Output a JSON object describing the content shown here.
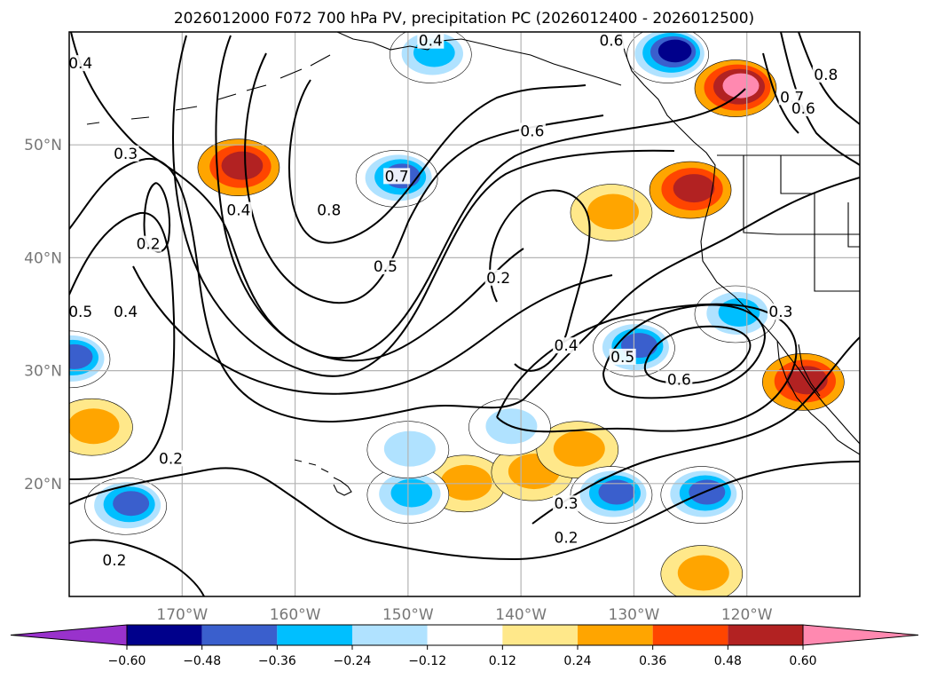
{
  "chart_data": {
    "type": "heatmap",
    "title": "2026012000 F072 700 hPa PV, precipitation PC (2026012400 - 2026012500)",
    "projection": "lat-lon",
    "xlim": [
      -180,
      -110
    ],
    "ylim": [
      10,
      60
    ],
    "x_ticks": [
      {
        "value": -170,
        "label": "170°W"
      },
      {
        "value": -160,
        "label": "160°W"
      },
      {
        "value": -150,
        "label": "150°W"
      },
      {
        "value": -140,
        "label": "140°W"
      },
      {
        "value": -130,
        "label": "130°W"
      },
      {
        "value": -120,
        "label": "120°W"
      }
    ],
    "y_ticks": [
      {
        "value": 20,
        "label": "20°N"
      },
      {
        "value": 30,
        "label": "30°N"
      },
      {
        "value": 40,
        "label": "40°N"
      },
      {
        "value": 50,
        "label": "50°N"
      }
    ],
    "grid": true,
    "colorbar": {
      "orientation": "horizontal",
      "extend": "both",
      "boundaries": [
        -0.6,
        -0.48,
        -0.36,
        -0.24,
        -0.12,
        0.12,
        0.24,
        0.36,
        0.48,
        0.6
      ],
      "tick_labels": [
        "−0.60",
        "−0.48",
        "−0.36",
        "−0.24",
        "−0.12",
        "0.12",
        "0.24",
        "0.36",
        "0.48",
        "0.60"
      ],
      "colors": [
        "#9932cc",
        "#00008b",
        "#3a5fcd",
        "#00bfff",
        "#b0e2ff",
        "#ffffff",
        "#ffe88a",
        "#ffa500",
        "#ff4500",
        "#b22222",
        "#ff89b0"
      ]
    },
    "pv_contour_labels": [
      {
        "lon": -179,
        "lat": 57,
        "text": "0.4"
      },
      {
        "lon": -175,
        "lat": 49,
        "text": "0.3"
      },
      {
        "lon": -173,
        "lat": 41,
        "text": "0.2"
      },
      {
        "lon": -165,
        "lat": 44,
        "text": "0.4"
      },
      {
        "lon": -179,
        "lat": 35,
        "text": "0.5"
      },
      {
        "lon": -175,
        "lat": 35,
        "text": "0.4"
      },
      {
        "lon": -171,
        "lat": 22,
        "text": "0.2"
      },
      {
        "lon": -176,
        "lat": 13,
        "text": "0.2"
      },
      {
        "lon": -148,
        "lat": 59,
        "text": "0.4"
      },
      {
        "lon": -157,
        "lat": 44,
        "text": "0.8"
      },
      {
        "lon": -151,
        "lat": 47,
        "text": "0.7"
      },
      {
        "lon": -139,
        "lat": 51,
        "text": "0.6"
      },
      {
        "lon": -152,
        "lat": 39,
        "text": "0.5"
      },
      {
        "lon": -142,
        "lat": 38,
        "text": "0.2"
      },
      {
        "lon": -136,
        "lat": 32,
        "text": "0.4"
      },
      {
        "lon": -131,
        "lat": 31,
        "text": "0.5"
      },
      {
        "lon": -126,
        "lat": 29,
        "text": "0.6"
      },
      {
        "lon": -136,
        "lat": 18,
        "text": "0.3"
      },
      {
        "lon": -136,
        "lat": 15,
        "text": "0.2"
      },
      {
        "lon": -117,
        "lat": 35,
        "text": "0.3"
      },
      {
        "lon": -132,
        "lat": 59,
        "text": "0.6"
      },
      {
        "lon": -116,
        "lat": 54,
        "text": "0.7"
      },
      {
        "lon": -115,
        "lat": 53,
        "text": "0.6"
      },
      {
        "lon": -113,
        "lat": 56,
        "text": "0.8"
      }
    ],
    "precip_pc_regions": [
      {
        "lon": -165,
        "lat": 48,
        "layers": [
          0.24,
          0.36,
          0.48
        ]
      },
      {
        "lon": -125,
        "lat": 46,
        "layers": [
          0.24,
          0.36,
          0.48
        ]
      },
      {
        "lon": -121,
        "lat": 55,
        "layers": [
          0.24,
          0.36,
          0.48,
          0.6
        ]
      },
      {
        "lon": -115,
        "lat": 29,
        "layers": [
          0.24,
          0.36,
          0.48
        ]
      },
      {
        "lon": -132,
        "lat": 44,
        "layers": [
          0.12,
          0.24
        ]
      },
      {
        "lon": -145,
        "lat": 20,
        "layers": [
          0.12,
          0.24
        ]
      },
      {
        "lon": -139,
        "lat": 21,
        "layers": [
          0.12,
          0.24
        ]
      },
      {
        "lon": -135,
        "lat": 23,
        "layers": [
          0.12,
          0.24
        ]
      },
      {
        "lon": -178,
        "lat": 25,
        "layers": [
          0.12,
          0.24
        ]
      },
      {
        "lon": -124,
        "lat": 12,
        "layers": [
          0.12,
          0.24
        ]
      },
      {
        "lon": -148,
        "lat": 58,
        "layers": [
          -0.12,
          -0.24,
          -0.36
        ]
      },
      {
        "lon": -151,
        "lat": 47,
        "layers": [
          -0.12,
          -0.24,
          -0.36,
          -0.48
        ]
      },
      {
        "lon": -127,
        "lat": 58,
        "layers": [
          -0.12,
          -0.24,
          -0.36,
          -0.48,
          -0.6
        ]
      },
      {
        "lon": -130,
        "lat": 32,
        "layers": [
          -0.12,
          -0.24,
          -0.36,
          -0.48
        ]
      },
      {
        "lon": -132,
        "lat": 19,
        "layers": [
          -0.12,
          -0.24,
          -0.36,
          -0.48
        ]
      },
      {
        "lon": -124,
        "lat": 19,
        "layers": [
          -0.12,
          -0.24,
          -0.36,
          -0.48
        ]
      },
      {
        "lon": -175,
        "lat": 18,
        "layers": [
          -0.12,
          -0.24,
          -0.36,
          -0.48
        ]
      },
      {
        "lon": -150,
        "lat": 19,
        "layers": [
          -0.12,
          -0.24,
          -0.36
        ]
      },
      {
        "lon": -180,
        "lat": 31,
        "layers": [
          -0.12,
          -0.24,
          -0.36,
          -0.48
        ]
      },
      {
        "lon": -121,
        "lat": 35,
        "layers": [
          -0.12,
          -0.24,
          -0.36
        ]
      },
      {
        "lon": -150,
        "lat": 23,
        "layers": [
          -0.12,
          -0.24
        ]
      },
      {
        "lon": -141,
        "lat": 25,
        "layers": [
          -0.12,
          -0.24
        ]
      }
    ]
  }
}
